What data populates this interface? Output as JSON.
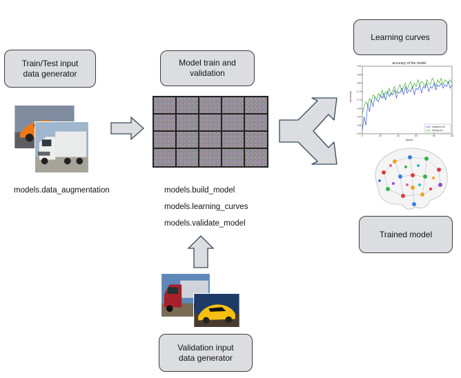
{
  "boxes": {
    "train_gen": {
      "line1": "Train/Test input",
      "line2": "data generator"
    },
    "model_train": "Model train and validation",
    "learning_curves": "Learning curves",
    "trained_model": "Trained model",
    "val_gen": {
      "line1": "Validation input",
      "line2": "data generator"
    }
  },
  "labels": {
    "data_augmentation": "models.data_augmentation",
    "build_model": "models.build_model",
    "learning_curves_fn": "models.learning_curves",
    "validate_model": "models.validate_model"
  },
  "chart_data": {
    "type": "line",
    "title": "accuracy of the model",
    "xlabel": "epoch",
    "ylabel": "accuracy",
    "xlim": [
      0,
      100
    ],
    "ylim": [
      0.5,
      0.9
    ],
    "xticks": [
      "0",
      "20",
      "40",
      "60",
      "80",
      "100"
    ],
    "yticks": [
      "0.50",
      "0.55",
      "0.60",
      "0.65",
      "0.70",
      "0.75",
      "0.80",
      "0.85",
      "0.90"
    ],
    "legend_position": "bottom-right",
    "series": [
      {
        "name": "validation set",
        "color": "#3355cc",
        "x": [
          0,
          2,
          4,
          6,
          8,
          10,
          12,
          14,
          16,
          18,
          20,
          22,
          24,
          26,
          28,
          30,
          32,
          34,
          36,
          38,
          40,
          42,
          44,
          46,
          48,
          50,
          52,
          54,
          56,
          58,
          60,
          62,
          64,
          66,
          68,
          70,
          72,
          74,
          76,
          78,
          80,
          82,
          84,
          86,
          88,
          90,
          92,
          94,
          96,
          98,
          100
        ],
        "y": [
          0.52,
          0.6,
          0.55,
          0.68,
          0.63,
          0.7,
          0.66,
          0.72,
          0.7,
          0.69,
          0.73,
          0.71,
          0.74,
          0.7,
          0.75,
          0.72,
          0.74,
          0.73,
          0.76,
          0.71,
          0.75,
          0.74,
          0.77,
          0.73,
          0.78,
          0.74,
          0.76,
          0.75,
          0.78,
          0.73,
          0.77,
          0.76,
          0.79,
          0.74,
          0.78,
          0.77,
          0.8,
          0.75,
          0.78,
          0.77,
          0.8,
          0.76,
          0.79,
          0.78,
          0.8,
          0.77,
          0.79,
          0.78,
          0.81,
          0.77,
          0.79
        ]
      },
      {
        "name": "training set",
        "color": "#44aa33",
        "x": [
          0,
          2,
          4,
          6,
          8,
          10,
          12,
          14,
          16,
          18,
          20,
          22,
          24,
          26,
          28,
          30,
          32,
          34,
          36,
          38,
          40,
          42,
          44,
          46,
          48,
          50,
          52,
          54,
          56,
          58,
          60,
          62,
          64,
          66,
          68,
          70,
          72,
          74,
          76,
          78,
          80,
          82,
          84,
          86,
          88,
          90,
          92,
          94,
          96,
          98,
          100
        ],
        "y": [
          0.62,
          0.66,
          0.69,
          0.67,
          0.71,
          0.69,
          0.73,
          0.72,
          0.7,
          0.74,
          0.72,
          0.76,
          0.71,
          0.75,
          0.74,
          0.77,
          0.73,
          0.76,
          0.78,
          0.74,
          0.77,
          0.79,
          0.75,
          0.78,
          0.8,
          0.76,
          0.79,
          0.81,
          0.77,
          0.8,
          0.78,
          0.82,
          0.79,
          0.81,
          0.8,
          0.78,
          0.82,
          0.8,
          0.79,
          0.83,
          0.81,
          0.78,
          0.82,
          0.8,
          0.83,
          0.79,
          0.82,
          0.81,
          0.8,
          0.82,
          0.8
        ]
      }
    ]
  }
}
